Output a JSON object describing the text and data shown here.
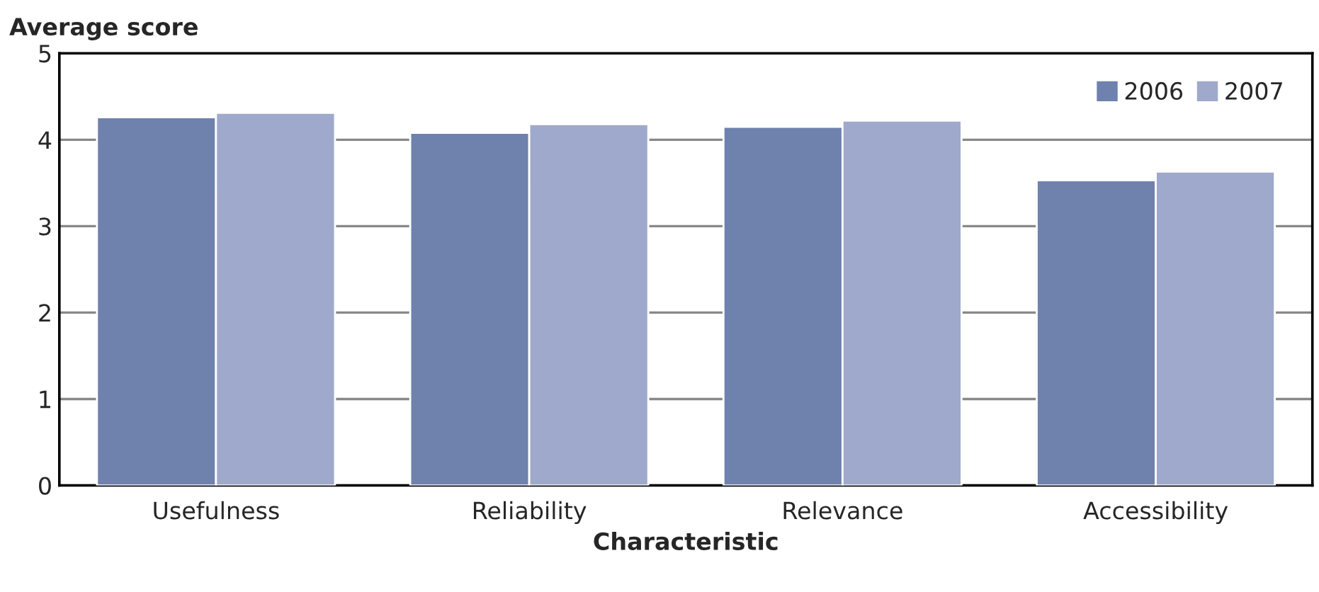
{
  "chart_data": {
    "type": "bar",
    "xlabel": "Characteristic",
    "ylabel": "Average score",
    "categories": [
      "Usefulness",
      "Reliability",
      "Relevance",
      "Accessibility"
    ],
    "series": [
      {
        "name": "2006",
        "color": "#6f82ae",
        "values": [
          4.26,
          4.08,
          4.15,
          3.53
        ]
      },
      {
        "name": "2007",
        "color": "#9fa9cb",
        "values": [
          4.31,
          4.18,
          4.22,
          3.63
        ]
      }
    ],
    "ylim": [
      0,
      5
    ],
    "yticks": [
      0,
      1,
      2,
      3,
      4,
      5
    ],
    "grid": "y",
    "legend": "top right"
  }
}
